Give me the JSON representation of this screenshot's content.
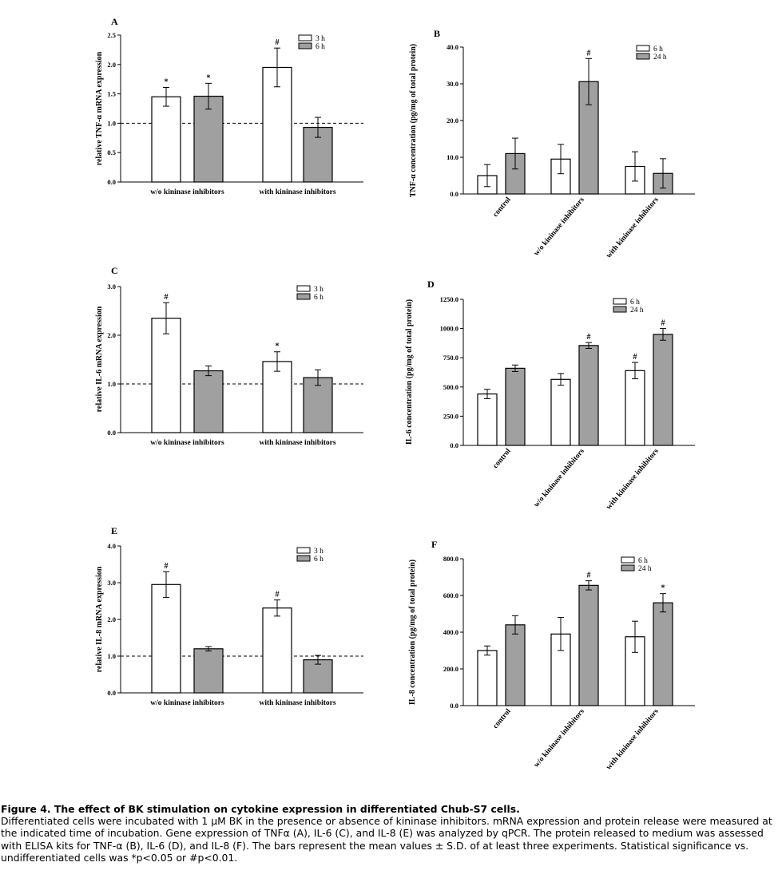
{
  "colors": {
    "bar_3h": "#ffffff",
    "bar_6h_grey": "#a0a0a0",
    "axis": "#000000"
  },
  "chart_data": [
    {
      "panel": "A",
      "type": "bar",
      "ylabel": "relative TNF-α mRNA expression",
      "ylim": [
        0,
        2.5
      ],
      "yticks": [
        "0.0",
        "0.5",
        "1.0",
        "1.5",
        "2.0",
        "2.5"
      ],
      "categories": [
        "w/o kininase inhibitors",
        "with kininase inhibitors"
      ],
      "series": [
        {
          "name": "3 h",
          "values": [
            1.45,
            1.95
          ],
          "errors": [
            0.16,
            0.33
          ],
          "marks": [
            "*",
            "#"
          ]
        },
        {
          "name": "6 h",
          "values": [
            1.46,
            0.93
          ],
          "errors": [
            0.22,
            0.17
          ],
          "marks": [
            "*",
            ""
          ]
        }
      ],
      "reference_line": 1.0,
      "legend": "top-right",
      "rotated_labels": false
    },
    {
      "panel": "B",
      "type": "bar",
      "ylabel": "TNF-α concentration (pg/mg of total protein)",
      "ylim": [
        0,
        40
      ],
      "yticks": [
        "0.0",
        "10.0",
        "20.0",
        "30.0",
        "40.0"
      ],
      "categories": [
        "control",
        "w/o kininase inhibitors",
        "with kininase inhibitors"
      ],
      "series": [
        {
          "name": "6 h",
          "values": [
            5.0,
            9.5,
            7.5
          ],
          "errors": [
            3.0,
            4.0,
            4.0
          ],
          "marks": [
            "",
            "",
            ""
          ]
        },
        {
          "name": "24 h",
          "values": [
            11.0,
            30.6,
            5.6
          ],
          "errors": [
            4.2,
            6.3,
            4.0
          ],
          "marks": [
            "",
            "#",
            ""
          ]
        }
      ],
      "legend": "top-right",
      "rotated_labels": true
    },
    {
      "panel": "C",
      "type": "bar",
      "ylabel": "relative IL-6 mRNA expression",
      "ylim": [
        0,
        3.0
      ],
      "yticks": [
        "0.0",
        "1.0",
        "2.0",
        "3.0"
      ],
      "categories": [
        "w/o kininase inhibitors",
        "with kininase inhibitors"
      ],
      "series": [
        {
          "name": "3 h",
          "values": [
            2.35,
            1.46
          ],
          "errors": [
            0.32,
            0.2
          ],
          "marks": [
            "#",
            "*"
          ]
        },
        {
          "name": "6 h",
          "values": [
            1.27,
            1.13
          ],
          "errors": [
            0.1,
            0.16
          ],
          "marks": [
            "",
            ""
          ]
        }
      ],
      "reference_line": 1.0,
      "legend": "top-right",
      "rotated_labels": false
    },
    {
      "panel": "D",
      "type": "bar",
      "ylabel": "IL-6 concentration (pg/mg of total protein)",
      "ylim": [
        0,
        1250
      ],
      "yticks": [
        "0.0",
        "250.0",
        "500.0",
        "750.0",
        "1000.0",
        "1250.0"
      ],
      "categories": [
        "control",
        "w/o kininase inhibitors",
        "with kininase inhibitors"
      ],
      "series": [
        {
          "name": "6 h",
          "values": [
            440,
            565,
            640
          ],
          "errors": [
            40,
            50,
            70
          ],
          "marks": [
            "",
            "",
            "#"
          ]
        },
        {
          "name": "24 h",
          "values": [
            660,
            855,
            950
          ],
          "errors": [
            28,
            25,
            50
          ],
          "marks": [
            "",
            "#",
            "#"
          ]
        }
      ],
      "legend": "top-right",
      "rotated_labels": true
    },
    {
      "panel": "E",
      "type": "bar",
      "ylabel": "relative IL-8 mRNA expression",
      "ylim": [
        0,
        4.0
      ],
      "yticks": [
        "0.0",
        "1.0",
        "2.0",
        "3.0",
        "4.0"
      ],
      "categories": [
        "w/o kininase inhibitors",
        "with kininase inhibitors"
      ],
      "series": [
        {
          "name": "3 h",
          "values": [
            2.95,
            2.31
          ],
          "errors": [
            0.35,
            0.22
          ],
          "marks": [
            "#",
            "#"
          ]
        },
        {
          "name": "6 h",
          "values": [
            1.2,
            0.9
          ],
          "errors": [
            0.06,
            0.12
          ],
          "marks": [
            "",
            ""
          ]
        }
      ],
      "reference_line": 1.0,
      "legend": "top-right",
      "rotated_labels": false
    },
    {
      "panel": "F",
      "type": "bar",
      "ylabel": "IL-8 concentration (pg/mg of total protein)",
      "ylim": [
        0,
        800
      ],
      "yticks": [
        "0.0",
        "200.0",
        "400.0",
        "600.0",
        "800.0"
      ],
      "categories": [
        "control",
        "w/o kininase inhibitors",
        "with kininase inhibitors"
      ],
      "series": [
        {
          "name": "6 h",
          "values": [
            300,
            390,
            375
          ],
          "errors": [
            25,
            90,
            85
          ],
          "marks": [
            "",
            "",
            ""
          ]
        },
        {
          "name": "24 h",
          "values": [
            440,
            655,
            560
          ],
          "errors": [
            50,
            25,
            50
          ],
          "marks": [
            "",
            "#",
            "*"
          ]
        }
      ],
      "legend": "top-right",
      "rotated_labels": true
    }
  ],
  "caption": {
    "title": "Figure 4. The effect of BK stimulation on cytokine expression in differentiated Chub-S7 cells.",
    "body": "Differentiated cells were incubated with 1 µM BK in the presence or absence of kininase inhibitors. mRNA expression and protein release were measured at the indicated time of incubation. Gene expression of TNFα (A), IL-6 (C), and IL-8 (E) was analyzed by qPCR. The protein released to medium was assessed with ELISA kits for TNF-α (B), IL-6 (D), and IL-8 (F). The bars represent the mean values ± S.D. of at least three experiments. Statistical significance vs. undifferentiated cells was *p<0.05 or #p<0.01."
  }
}
